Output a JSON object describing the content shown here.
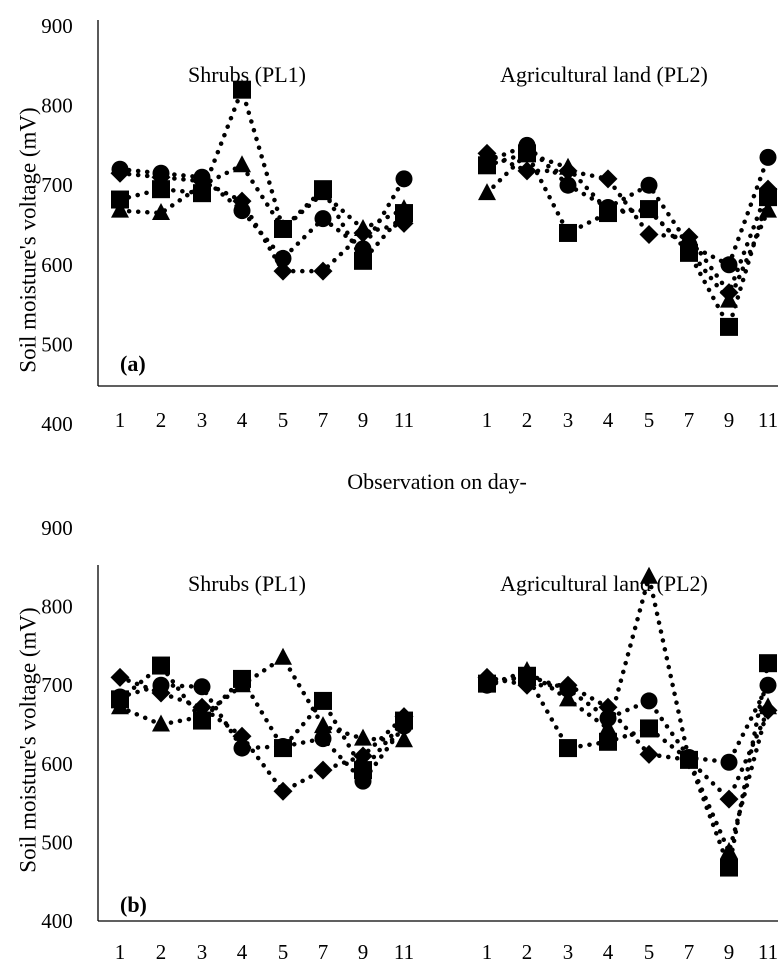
{
  "chart_data": [
    {
      "type": "scatter",
      "panel_label": "(a)",
      "ylabel": "Soil moisture's voltage (mV)",
      "xlabel": "Observation on day-",
      "ylim": [
        400,
        900
      ],
      "yticks": [
        400,
        500,
        600,
        700,
        800,
        900
      ],
      "groups": [
        {
          "title": "Shrubs (PL1)",
          "categories": [
            "1",
            "2",
            "3",
            "4",
            "5",
            "7",
            "9",
            "11"
          ],
          "series": [
            {
              "marker": "circle",
              "values": [
                720,
                715,
                710,
                668,
                608,
                658,
                620,
                708
              ]
            },
            {
              "marker": "diamond",
              "values": [
                715,
                710,
                705,
                680,
                592,
                592,
                640,
                652
              ]
            },
            {
              "marker": "triangle",
              "values": [
                668,
                665,
                700,
                725,
                645,
                690,
                645,
                670
              ]
            },
            {
              "marker": "square",
              "values": [
                682,
                695,
                690,
                820,
                645,
                695,
                605,
                665
              ]
            }
          ]
        },
        {
          "title": "Agricultural land (PL2)",
          "categories": [
            "1",
            "2",
            "3",
            "4",
            "5",
            "7",
            "9",
            "11"
          ],
          "series": [
            {
              "marker": "circle",
              "values": [
                730,
                750,
                700,
                672,
                700,
                625,
                600,
                735
              ]
            },
            {
              "marker": "diamond",
              "values": [
                740,
                718,
                718,
                708,
                638,
                635,
                565,
                695
              ]
            },
            {
              "marker": "triangle",
              "values": [
                690,
                740,
                722,
                668,
                668,
                618,
                555,
                668
              ]
            },
            {
              "marker": "square",
              "values": [
                725,
                740,
                640,
                665,
                670,
                615,
                522,
                685
              ]
            }
          ]
        }
      ]
    },
    {
      "type": "scatter",
      "panel_label": "(b)",
      "ylabel": "Soil moisture's voltage (mV)",
      "xlabel": "",
      "ylim": [
        400,
        900
      ],
      "yticks": [
        400,
        500,
        600,
        700,
        800,
        900
      ],
      "groups": [
        {
          "title": "Shrubs (PL1)",
          "categories": [
            "1",
            "2",
            "3",
            "4",
            "5",
            "7",
            "9",
            "11"
          ],
          "series": [
            {
              "marker": "circle",
              "values": [
                685,
                700,
                698,
                620,
                622,
                632,
                578,
                648
              ]
            },
            {
              "marker": "diamond",
              "values": [
                710,
                690,
                672,
                635,
                565,
                592,
                610,
                660
              ]
            },
            {
              "marker": "triangle",
              "values": [
                672,
                650,
                660,
                700,
                735,
                648,
                632,
                630
              ]
            },
            {
              "marker": "square",
              "values": [
                682,
                725,
                655,
                708,
                620,
                680,
                592,
                655
              ]
            }
          ]
        },
        {
          "title": "Agricultural land (PL2)",
          "categories": [
            "1",
            "2",
            "3",
            "4",
            "5",
            "7",
            "9",
            "11"
          ],
          "series": [
            {
              "marker": "circle",
              "values": [
                700,
                712,
                695,
                658,
                680,
                608,
                602,
                700
              ]
            },
            {
              "marker": "diamond",
              "values": [
                710,
                700,
                700,
                672,
                612,
                605,
                555,
                668
              ]
            },
            {
              "marker": "triangle",
              "values": [
                700,
                718,
                682,
                645,
                838,
                605,
                488,
                672
              ]
            },
            {
              "marker": "square",
              "values": [
                702,
                712,
                620,
                628,
                645,
                605,
                468,
                728
              ]
            }
          ]
        }
      ]
    }
  ]
}
